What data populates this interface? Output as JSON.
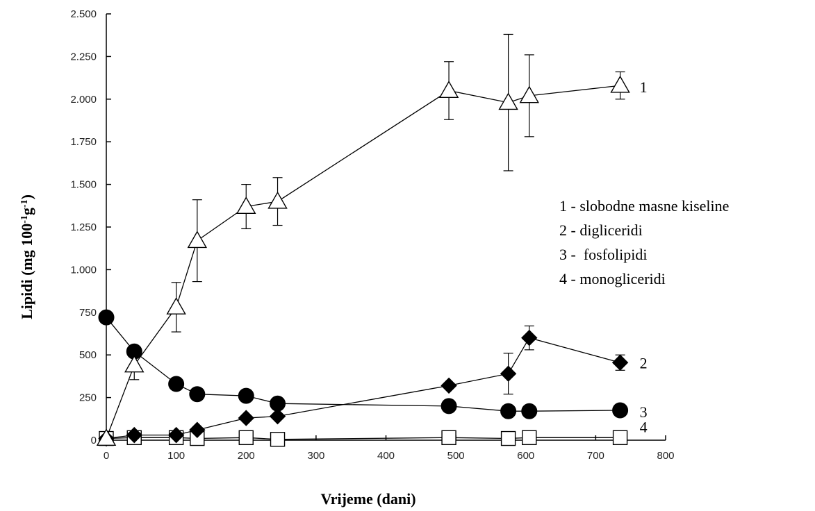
{
  "chart_data": {
    "type": "line",
    "title": "",
    "xlabel": "Vrijeme (dani)",
    "ylabel_parts": [
      "Lipidi (mg 100",
      "-1",
      "g",
      "-1",
      ")"
    ],
    "xlim": [
      0,
      800
    ],
    "ylim": [
      0,
      2500
    ],
    "x_ticks": [
      0,
      100,
      200,
      300,
      400,
      500,
      600,
      700,
      800
    ],
    "x_tick_labels": [
      "0",
      "100",
      "200",
      "300",
      "400",
      "500",
      "600",
      "700",
      "800"
    ],
    "y_ticks": [
      0,
      250,
      500,
      750,
      1000,
      1250,
      1500,
      1750,
      2000,
      2250,
      2500
    ],
    "y_tick_labels": [
      "0",
      "250",
      "500",
      "750",
      "1.000",
      "1.250",
      "1.500",
      "1.750",
      "2.000",
      "2.250",
      "2.500"
    ],
    "series": [
      {
        "label": "1",
        "marker": "triangle-open",
        "points": [
          {
            "x": 0,
            "y": 10,
            "err": 0
          },
          {
            "x": 40,
            "y": 440,
            "err": 85
          },
          {
            "x": 100,
            "y": 780,
            "err": 145
          },
          {
            "x": 130,
            "y": 1170,
            "err": 240
          },
          {
            "x": 200,
            "y": 1370,
            "err": 130
          },
          {
            "x": 245,
            "y": 1400,
            "err": 140
          },
          {
            "x": 490,
            "y": 2050,
            "err": 170
          },
          {
            "x": 575,
            "y": 1980,
            "err": 400
          },
          {
            "x": 605,
            "y": 2020,
            "err": 240
          },
          {
            "x": 735,
            "y": 2080,
            "err": 80
          }
        ]
      },
      {
        "label": "2",
        "marker": "diamond-filled",
        "points": [
          {
            "x": 0,
            "y": 10,
            "err": 0
          },
          {
            "x": 40,
            "y": 30,
            "err": 0
          },
          {
            "x": 100,
            "y": 30,
            "err": 0
          },
          {
            "x": 130,
            "y": 60,
            "err": 0
          },
          {
            "x": 200,
            "y": 130,
            "err": 0
          },
          {
            "x": 245,
            "y": 140,
            "err": 0
          },
          {
            "x": 490,
            "y": 320,
            "err": 0
          },
          {
            "x": 575,
            "y": 390,
            "err": 120
          },
          {
            "x": 605,
            "y": 600,
            "err": 70
          },
          {
            "x": 735,
            "y": 455,
            "err": 45
          }
        ]
      },
      {
        "label": "3",
        "marker": "circle-filled",
        "points": [
          {
            "x": 0,
            "y": 720,
            "err": 0
          },
          {
            "x": 40,
            "y": 520,
            "err": 0
          },
          {
            "x": 100,
            "y": 330,
            "err": 0
          },
          {
            "x": 130,
            "y": 270,
            "err": 0
          },
          {
            "x": 200,
            "y": 260,
            "err": 0
          },
          {
            "x": 245,
            "y": 215,
            "err": 0
          },
          {
            "x": 490,
            "y": 200,
            "err": 0
          },
          {
            "x": 575,
            "y": 170,
            "err": 0
          },
          {
            "x": 605,
            "y": 170,
            "err": 0
          },
          {
            "x": 735,
            "y": 175,
            "err": 0
          }
        ]
      },
      {
        "label": "4",
        "marker": "square-open",
        "points": [
          {
            "x": 0,
            "y": 10,
            "err": 0
          },
          {
            "x": 40,
            "y": 15,
            "err": 0
          },
          {
            "x": 100,
            "y": 15,
            "err": 0
          },
          {
            "x": 130,
            "y": 10,
            "err": 0
          },
          {
            "x": 200,
            "y": 15,
            "err": 0
          },
          {
            "x": 245,
            "y": 5,
            "err": 0
          },
          {
            "x": 490,
            "y": 15,
            "err": 0
          },
          {
            "x": 575,
            "y": 10,
            "err": 0
          },
          {
            "x": 605,
            "y": 15,
            "err": 0
          },
          {
            "x": 735,
            "y": 15,
            "err": 0
          }
        ]
      }
    ],
    "legend_position": "right",
    "legend": [
      "1 - slobodne masne kiseline",
      "2 - digliceridi",
      "3 -  fosfolipidi",
      "4 - monogliceridi"
    ],
    "grid": false,
    "colors": {
      "ink": "#000000",
      "marker_fill_open": "#ffffff"
    }
  }
}
